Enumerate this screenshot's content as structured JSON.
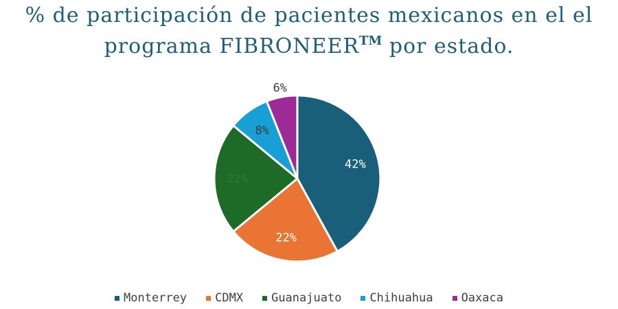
{
  "chart_data": {
    "type": "pie",
    "title_main": "% de participación de pacientes mexicanos en el el programa FIBRONEER",
    "title_mark": "TM",
    "title_end": " por estado.",
    "categories": [
      "Monterrey",
      "CDMX",
      "Guanajuato",
      "Chihuahua",
      "Oaxaca"
    ],
    "values": [
      42,
      22,
      22,
      8,
      6
    ],
    "labels": [
      "42%",
      "22%",
      "22%",
      "8%",
      "6%"
    ],
    "colors": [
      "#1a5f7a",
      "#ea7434",
      "#1d6b27",
      "#179fd6",
      "#9e2a98"
    ],
    "label_colors": [
      "#ffffff",
      "#ffffff",
      "#2e7a32",
      "#3c3c3c",
      "#3c3c3c"
    ],
    "legend_position": "bottom"
  }
}
